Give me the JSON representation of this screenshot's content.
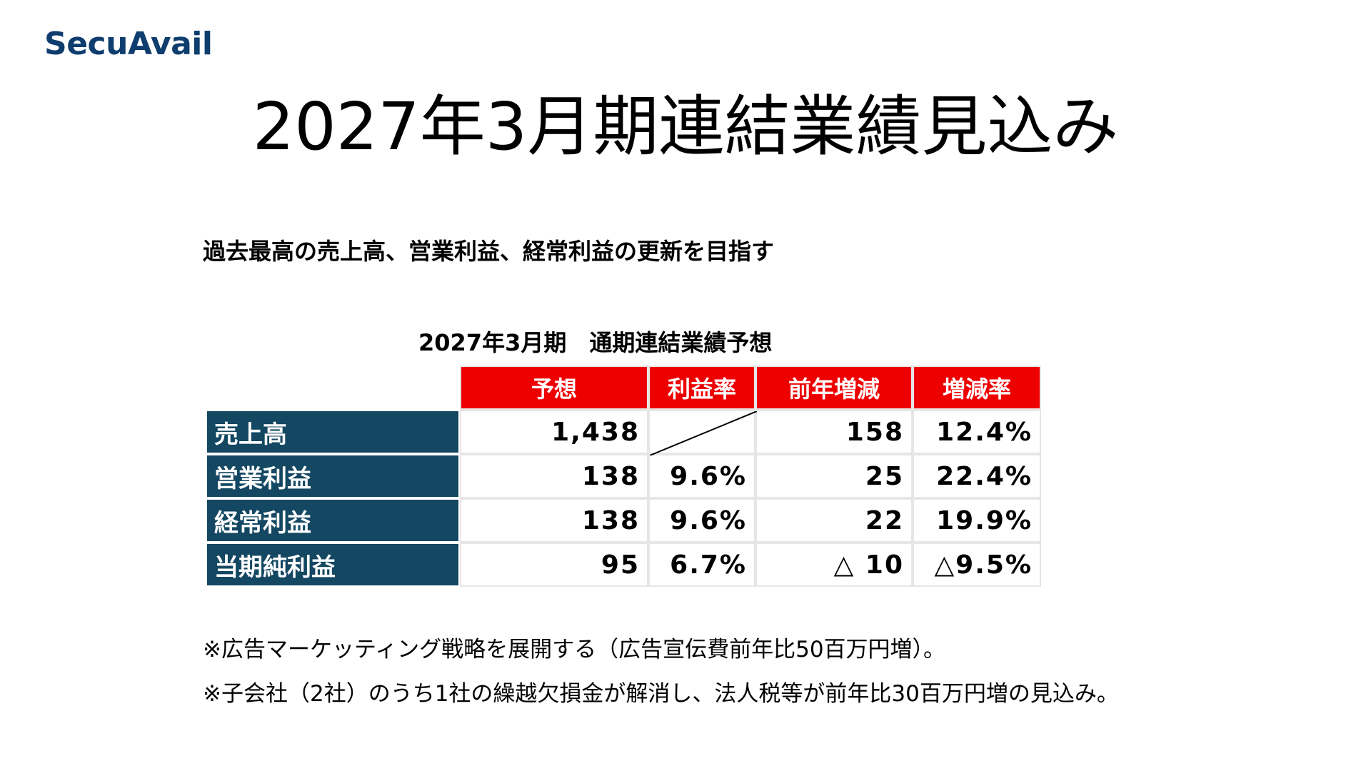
{
  "logo": {
    "text": "SecuAvail",
    "color": "#0e3d6e"
  },
  "title": "2027年3月期連結業績見込み",
  "subtitle": "過去最高の売上高、営業利益、経常利益の更新を目指す",
  "table": {
    "caption": "2027年3月期　通期連結業績予想",
    "header_color": "#ee0000",
    "row_header_color": "#134762",
    "columns": [
      "予想",
      "利益率",
      "前年増減",
      "増減率"
    ],
    "rows": [
      {
        "label": "売上高",
        "forecast": "1,438",
        "margin": "",
        "diff": "158",
        "rate": "12.4%"
      },
      {
        "label": "営業利益",
        "forecast": "138",
        "margin": "9.6%",
        "diff": "25",
        "rate": "22.4%"
      },
      {
        "label": "経常利益",
        "forecast": "138",
        "margin": "9.6%",
        "diff": "22",
        "rate": "19.9%"
      },
      {
        "label": "当期純利益",
        "forecast": "95",
        "margin": "6.7%",
        "diff": "△ 10",
        "rate": "△9.5%"
      }
    ]
  },
  "notes": [
    "※広告マーケッティング戦略を展開する（広告宣伝費前年比50百万円増）。",
    "※子会社（2社）のうち1社の繰越欠損金が解消し、法人税等が前年比30百万円増の見込み。"
  ]
}
